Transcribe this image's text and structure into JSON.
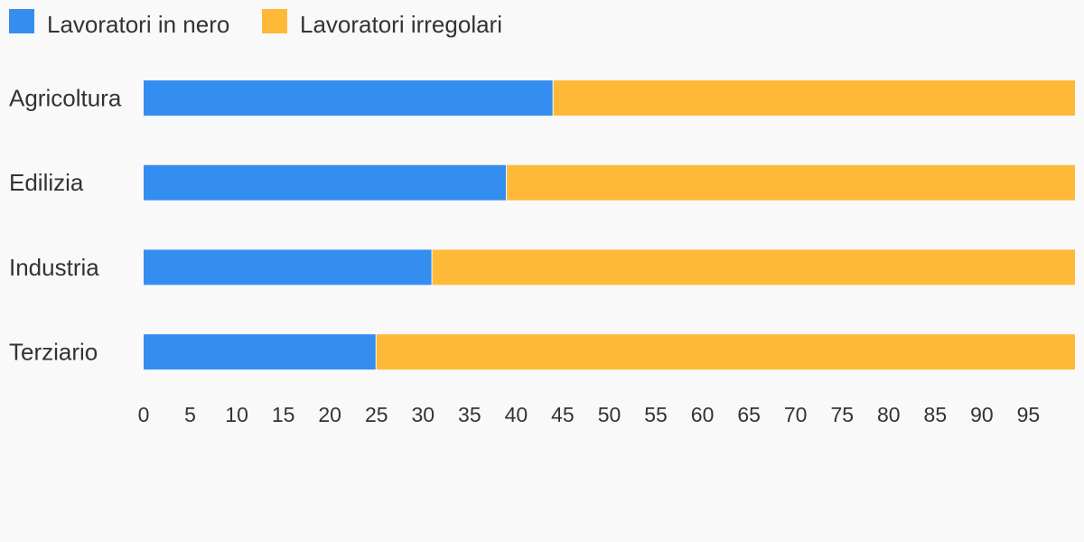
{
  "colors": {
    "background": "#f9f9f9",
    "series_nero": "#348ef0",
    "series_irregolari": "#ffb938",
    "text": "#333333"
  },
  "chart_data": {
    "type": "bar",
    "orientation": "horizontal",
    "stacked": true,
    "categories": [
      "Agricoltura",
      "Edilizia",
      "Industria",
      "Terziario"
    ],
    "series": [
      {
        "name": "Lavoratori in nero",
        "values": [
          44,
          39,
          31,
          25
        ]
      },
      {
        "name": "Lavoratori irregolari",
        "values": [
          56,
          61,
          69,
          75
        ]
      }
    ],
    "x_ticks": [
      0,
      5,
      10,
      15,
      20,
      25,
      30,
      35,
      40,
      45,
      50,
      55,
      60,
      65,
      70,
      75,
      80,
      85,
      90,
      95
    ],
    "xlim": [
      0,
      100
    ],
    "grid": false,
    "legend_position": "top-left",
    "title": "",
    "xlabel": "",
    "ylabel": ""
  }
}
